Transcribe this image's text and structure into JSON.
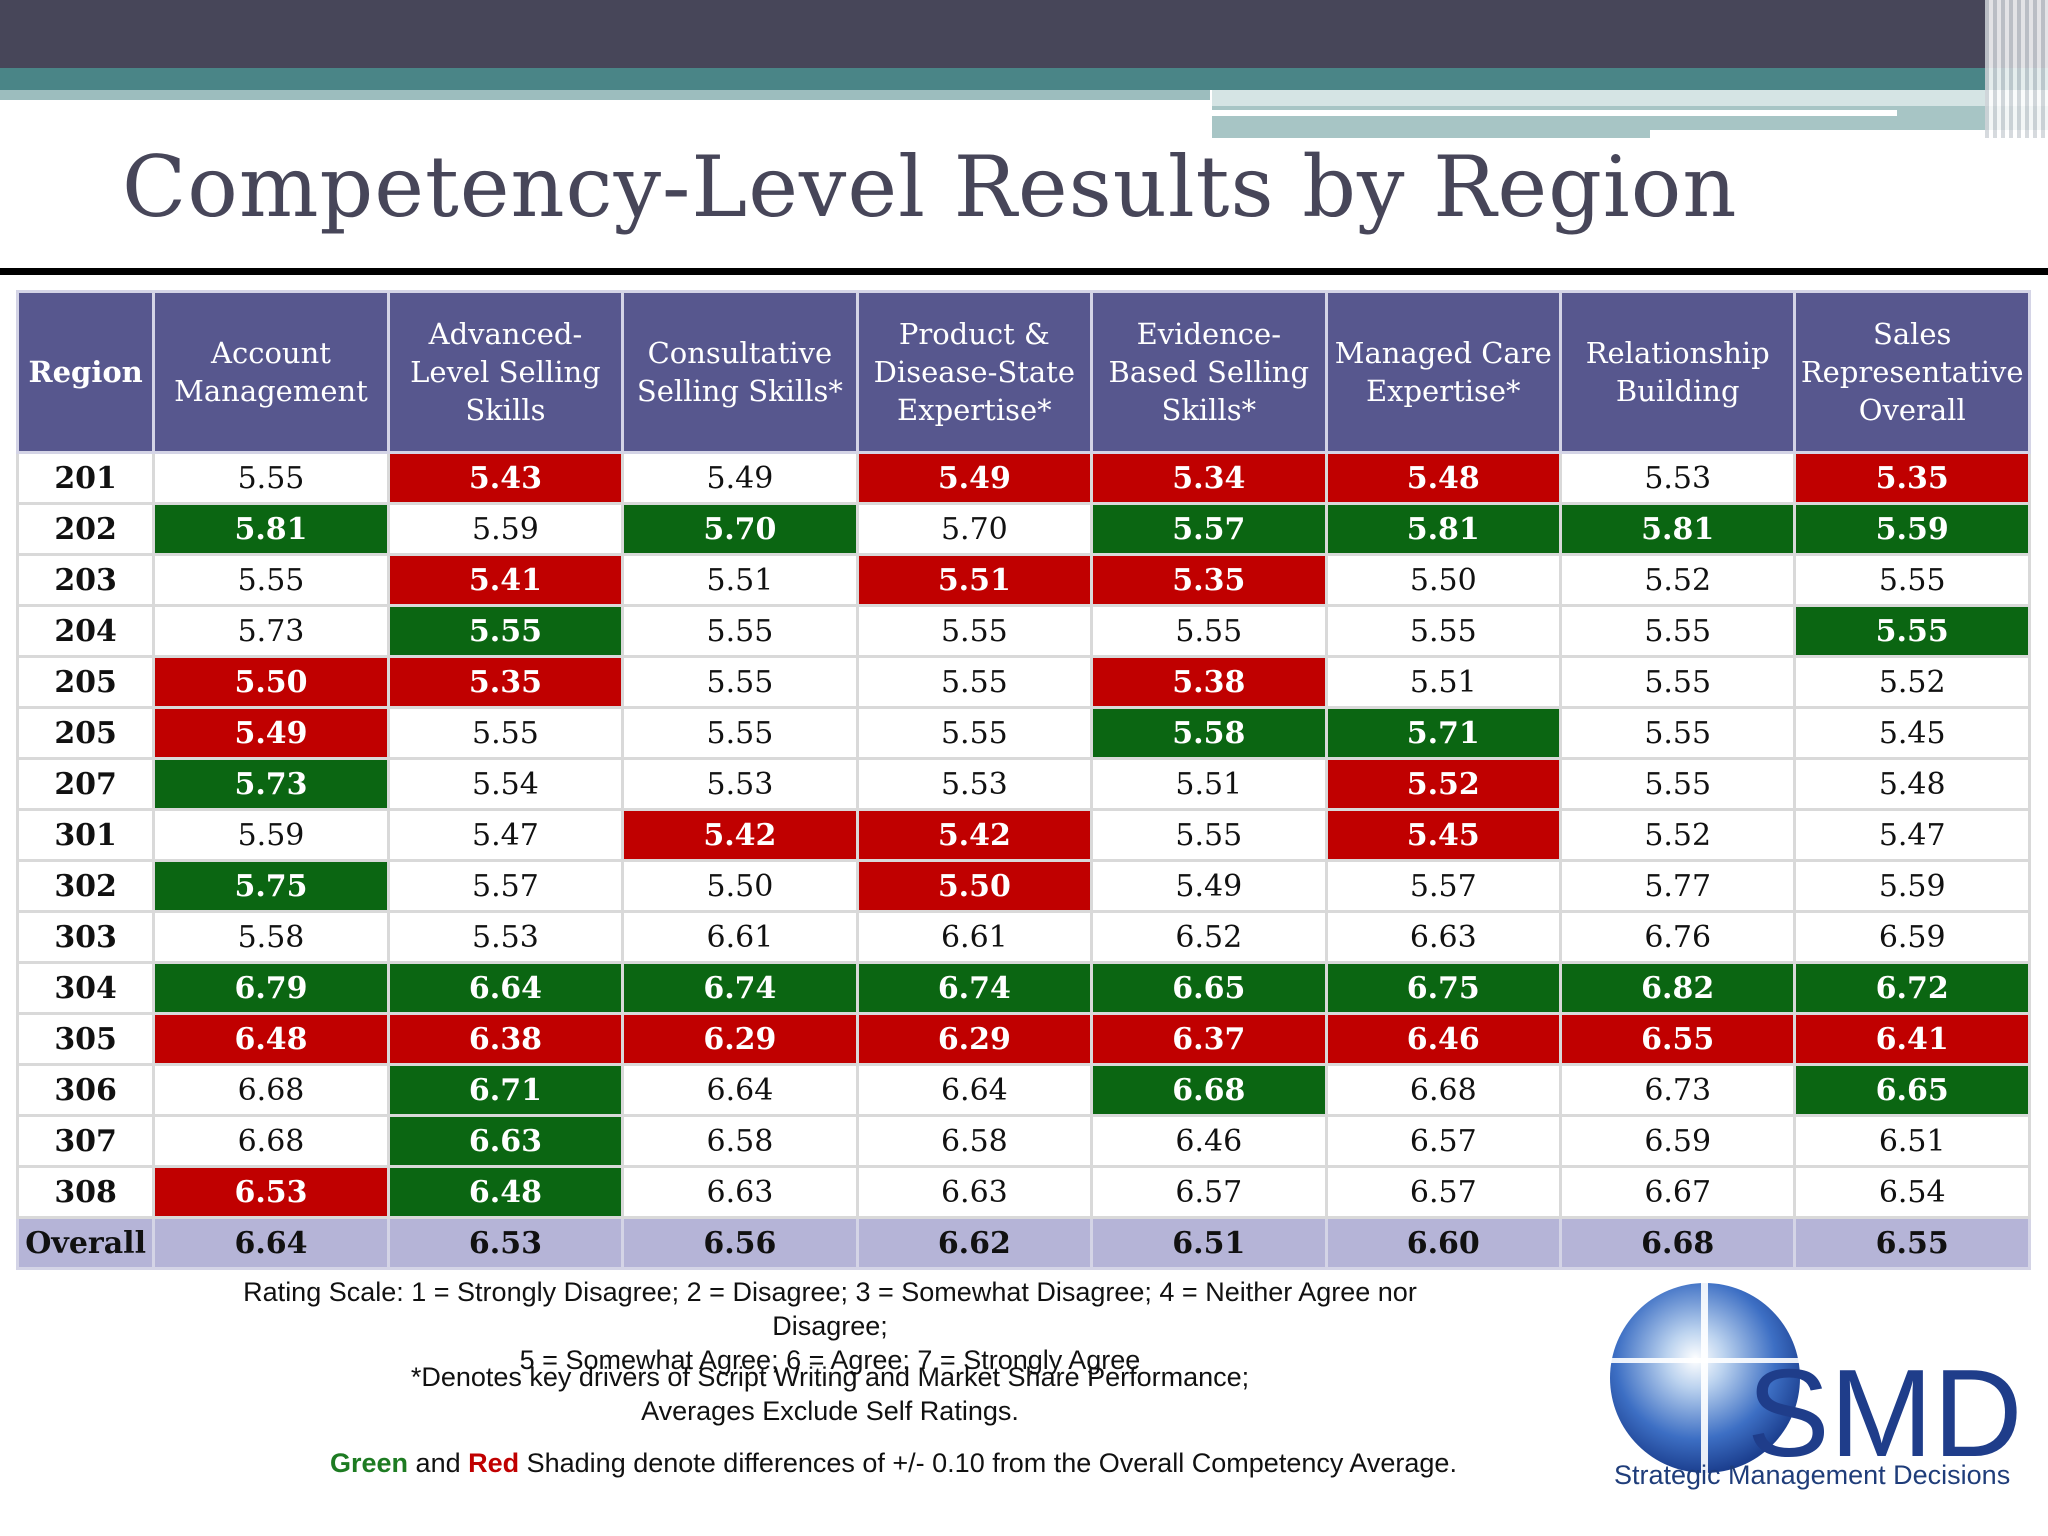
{
  "title": "Competency-Level Results by Region",
  "colors": {
    "green": "#0b6612",
    "red": "#c00000",
    "header": "#57578e",
    "overall": "#b5b4d7"
  },
  "table": {
    "headers": [
      "Region",
      "Account Management",
      "Advanced-Level Selling Skills",
      "Consultative Selling Skills*",
      "Product & Disease-State Expertise*",
      "Evidence-Based Selling Skills*",
      "Managed Care Expertise*",
      "Relationship Building",
      "Sales Representative Overall"
    ],
    "rows": [
      {
        "region": "201",
        "cells": [
          {
            "v": "5.55",
            "s": ""
          },
          {
            "v": "5.43",
            "s": "r"
          },
          {
            "v": "5.49",
            "s": ""
          },
          {
            "v": "5.49",
            "s": "r"
          },
          {
            "v": "5.34",
            "s": "r"
          },
          {
            "v": "5.48",
            "s": "r"
          },
          {
            "v": "5.53",
            "s": ""
          },
          {
            "v": "5.35",
            "s": "r"
          }
        ]
      },
      {
        "region": "202",
        "cells": [
          {
            "v": "5.81",
            "s": "g"
          },
          {
            "v": "5.59",
            "s": ""
          },
          {
            "v": "5.70",
            "s": "g"
          },
          {
            "v": "5.70",
            "s": ""
          },
          {
            "v": "5.57",
            "s": "g"
          },
          {
            "v": "5.81",
            "s": "g"
          },
          {
            "v": "5.81",
            "s": "g"
          },
          {
            "v": "5.59",
            "s": "g"
          }
        ]
      },
      {
        "region": "203",
        "cells": [
          {
            "v": "5.55",
            "s": ""
          },
          {
            "v": "5.41",
            "s": "r"
          },
          {
            "v": "5.51",
            "s": ""
          },
          {
            "v": "5.51",
            "s": "r"
          },
          {
            "v": "5.35",
            "s": "r"
          },
          {
            "v": "5.50",
            "s": ""
          },
          {
            "v": "5.52",
            "s": ""
          },
          {
            "v": "5.55",
            "s": ""
          }
        ]
      },
      {
        "region": "204",
        "cells": [
          {
            "v": "5.73",
            "s": ""
          },
          {
            "v": "5.55",
            "s": "g"
          },
          {
            "v": "5.55",
            "s": ""
          },
          {
            "v": "5.55",
            "s": ""
          },
          {
            "v": "5.55",
            "s": ""
          },
          {
            "v": "5.55",
            "s": ""
          },
          {
            "v": "5.55",
            "s": ""
          },
          {
            "v": "5.55",
            "s": "g"
          }
        ]
      },
      {
        "region": "205",
        "cells": [
          {
            "v": "5.50",
            "s": "r"
          },
          {
            "v": "5.35",
            "s": "r"
          },
          {
            "v": "5.55",
            "s": ""
          },
          {
            "v": "5.55",
            "s": ""
          },
          {
            "v": "5.38",
            "s": "r"
          },
          {
            "v": "5.51",
            "s": ""
          },
          {
            "v": "5.55",
            "s": ""
          },
          {
            "v": "5.52",
            "s": ""
          }
        ]
      },
      {
        "region": "205",
        "cells": [
          {
            "v": "5.49",
            "s": "r"
          },
          {
            "v": "5.55",
            "s": ""
          },
          {
            "v": "5.55",
            "s": ""
          },
          {
            "v": "5.55",
            "s": ""
          },
          {
            "v": "5.58",
            "s": "g"
          },
          {
            "v": "5.71",
            "s": "g"
          },
          {
            "v": "5.55",
            "s": ""
          },
          {
            "v": "5.45",
            "s": ""
          }
        ]
      },
      {
        "region": "207",
        "cells": [
          {
            "v": "5.73",
            "s": "g"
          },
          {
            "v": "5.54",
            "s": ""
          },
          {
            "v": "5.53",
            "s": ""
          },
          {
            "v": "5.53",
            "s": ""
          },
          {
            "v": "5.51",
            "s": ""
          },
          {
            "v": "5.52",
            "s": "r"
          },
          {
            "v": "5.55",
            "s": ""
          },
          {
            "v": "5.48",
            "s": ""
          }
        ]
      },
      {
        "region": "301",
        "cells": [
          {
            "v": "5.59",
            "s": ""
          },
          {
            "v": "5.47",
            "s": ""
          },
          {
            "v": "5.42",
            "s": "r"
          },
          {
            "v": "5.42",
            "s": "r"
          },
          {
            "v": "5.55",
            "s": ""
          },
          {
            "v": "5.45",
            "s": "r"
          },
          {
            "v": "5.52",
            "s": ""
          },
          {
            "v": "5.47",
            "s": ""
          }
        ]
      },
      {
        "region": "302",
        "cells": [
          {
            "v": "5.75",
            "s": "g"
          },
          {
            "v": "5.57",
            "s": ""
          },
          {
            "v": "5.50",
            "s": ""
          },
          {
            "v": "5.50",
            "s": "r"
          },
          {
            "v": "5.49",
            "s": ""
          },
          {
            "v": "5.57",
            "s": ""
          },
          {
            "v": "5.77",
            "s": ""
          },
          {
            "v": "5.59",
            "s": ""
          }
        ]
      },
      {
        "region": "303",
        "cells": [
          {
            "v": "5.58",
            "s": ""
          },
          {
            "v": "5.53",
            "s": ""
          },
          {
            "v": "6.61",
            "s": ""
          },
          {
            "v": "6.61",
            "s": ""
          },
          {
            "v": "6.52",
            "s": ""
          },
          {
            "v": "6.63",
            "s": ""
          },
          {
            "v": "6.76",
            "s": ""
          },
          {
            "v": "6.59",
            "s": ""
          }
        ]
      },
      {
        "region": "304",
        "cells": [
          {
            "v": "6.79",
            "s": "g"
          },
          {
            "v": "6.64",
            "s": "g"
          },
          {
            "v": "6.74",
            "s": "g"
          },
          {
            "v": "6.74",
            "s": "g"
          },
          {
            "v": "6.65",
            "s": "g"
          },
          {
            "v": "6.75",
            "s": "g"
          },
          {
            "v": "6.82",
            "s": "g"
          },
          {
            "v": "6.72",
            "s": "g"
          }
        ]
      },
      {
        "region": "305",
        "cells": [
          {
            "v": "6.48",
            "s": "r"
          },
          {
            "v": "6.38",
            "s": "r"
          },
          {
            "v": "6.29",
            "s": "r"
          },
          {
            "v": "6.29",
            "s": "r"
          },
          {
            "v": "6.37",
            "s": "r"
          },
          {
            "v": "6.46",
            "s": "r"
          },
          {
            "v": "6.55",
            "s": "r"
          },
          {
            "v": "6.41",
            "s": "r"
          }
        ]
      },
      {
        "region": "306",
        "cells": [
          {
            "v": "6.68",
            "s": ""
          },
          {
            "v": "6.71",
            "s": "g"
          },
          {
            "v": "6.64",
            "s": ""
          },
          {
            "v": "6.64",
            "s": ""
          },
          {
            "v": "6.68",
            "s": "g"
          },
          {
            "v": "6.68",
            "s": ""
          },
          {
            "v": "6.73",
            "s": ""
          },
          {
            "v": "6.65",
            "s": "g"
          }
        ]
      },
      {
        "region": "307",
        "cells": [
          {
            "v": "6.68",
            "s": ""
          },
          {
            "v": "6.63",
            "s": "g"
          },
          {
            "v": "6.58",
            "s": ""
          },
          {
            "v": "6.58",
            "s": ""
          },
          {
            "v": "6.46",
            "s": ""
          },
          {
            "v": "6.57",
            "s": ""
          },
          {
            "v": "6.59",
            "s": ""
          },
          {
            "v": "6.51",
            "s": ""
          }
        ]
      },
      {
        "region": "308",
        "cells": [
          {
            "v": "6.53",
            "s": "r"
          },
          {
            "v": "6.48",
            "s": "g"
          },
          {
            "v": "6.63",
            "s": ""
          },
          {
            "v": "6.63",
            "s": ""
          },
          {
            "v": "6.57",
            "s": ""
          },
          {
            "v": "6.57",
            "s": ""
          },
          {
            "v": "6.67",
            "s": ""
          },
          {
            "v": "6.54",
            "s": ""
          }
        ]
      }
    ],
    "overall": {
      "label": "Overall",
      "values": [
        "6.64",
        "6.53",
        "6.56",
        "6.62",
        "6.51",
        "6.60",
        "6.68",
        "6.55"
      ]
    }
  },
  "notes": {
    "rating_line1": "Rating Scale: 1 = Strongly Disagree; 2 = Disagree; 3 = Somewhat Disagree; 4 = Neither Agree nor Disagree;",
    "rating_line2": "5 = Somewhat Agree; 6 = Agree; 7 = Strongly Agree",
    "drivers_line1": "*Denotes key drivers of Script Writing and Market Share Performance;",
    "drivers_line2": "Averages Exclude Self Ratings.",
    "shading_green": "Green",
    "shading_and": " and ",
    "shading_red": "Red",
    "shading_rest": " Shading denote differences of +/- 0.10 from the Overall Competency Average."
  },
  "logo": {
    "mark": "SMD",
    "subtitle": "Strategic Management Decisions",
    "icon": "globe-icon"
  }
}
